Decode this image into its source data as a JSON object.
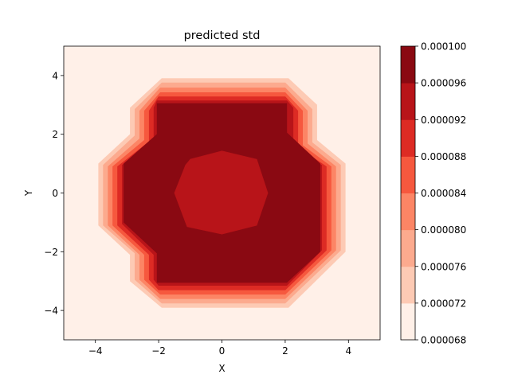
{
  "chart_data": {
    "type": "contourf",
    "title": "predicted std",
    "xlabel": "X",
    "ylabel": "Y",
    "xlim": [
      -5,
      5
    ],
    "ylim": [
      -5,
      5
    ],
    "x_ticks": [
      -4,
      -2,
      0,
      2,
      4
    ],
    "y_ticks": [
      -4,
      -2,
      0,
      2,
      4
    ],
    "x_tick_labels": [
      "−4",
      "−2",
      "0",
      "2",
      "4"
    ],
    "y_tick_labels": [
      "−4",
      "−2",
      "0",
      "2",
      "4"
    ],
    "colormap": "Reds",
    "colorbar": {
      "min": 6.8e-05,
      "max": 0.0001,
      "ticks": [
        6.8e-05,
        7.2e-05,
        7.6e-05,
        8e-05,
        8.4e-05,
        8.8e-05,
        9.2e-05,
        9.6e-05,
        0.0001
      ],
      "tick_labels": [
        "0.000068",
        "0.000072",
        "0.000076",
        "0.000080",
        "0.000084",
        "0.000088",
        "0.000092",
        "0.000096",
        "0.000100"
      ],
      "level_edges": [
        6.8e-05,
        7e-05,
        7.2e-05,
        7.4e-05,
        7.6e-05,
        7.8e-05,
        8e-05,
        8.2e-05,
        8.4e-05,
        8.6e-05,
        8.8e-05,
        9e-05,
        9.2e-05,
        9.4e-05,
        9.6e-05,
        9.8e-05,
        0.0001
      ]
    },
    "colors": [
      "#fff0e8",
      "#fdcab4",
      "#fcaa8e",
      "#fc8565",
      "#f6583e",
      "#dd2b24",
      "#b81419",
      "#8a0912"
    ],
    "regions": [
      {
        "level": 0,
        "polygon": [
          [
            -5,
            -5
          ],
          [
            5,
            -5
          ],
          [
            5,
            5
          ],
          [
            -5,
            5
          ]
        ]
      },
      {
        "level": 1,
        "polygon": [
          [
            -1.9,
            3.9
          ],
          [
            2.1,
            3.9
          ],
          [
            3.0,
            3.0
          ],
          [
            3.0,
            1.8
          ],
          [
            3.9,
            1.0
          ],
          [
            3.9,
            -2.0
          ],
          [
            2.1,
            -3.9
          ],
          [
            -1.9,
            -3.9
          ],
          [
            -2.9,
            -3.0
          ],
          [
            -2.9,
            -2.1
          ],
          [
            -3.9,
            -1.1
          ],
          [
            -3.9,
            1.0
          ],
          [
            -2.9,
            2.0
          ],
          [
            -2.9,
            2.9
          ]
        ]
      },
      {
        "level": 2,
        "polygon": [
          [
            -1.9,
            3.75
          ],
          [
            2.0,
            3.75
          ],
          [
            2.85,
            2.85
          ],
          [
            2.85,
            1.72
          ],
          [
            3.75,
            0.95
          ],
          [
            3.75,
            -1.95
          ],
          [
            2.0,
            -3.75
          ],
          [
            -1.9,
            -3.75
          ],
          [
            -2.75,
            -2.95
          ],
          [
            -2.75,
            -2.05
          ],
          [
            -3.75,
            -1.1
          ],
          [
            -3.75,
            0.95
          ],
          [
            -2.75,
            1.95
          ],
          [
            -2.75,
            2.85
          ]
        ]
      },
      {
        "level": 3,
        "polygon": [
          [
            -1.95,
            3.58
          ],
          [
            2.0,
            3.58
          ],
          [
            2.7,
            2.8
          ],
          [
            2.7,
            1.68
          ],
          [
            3.6,
            0.9
          ],
          [
            3.6,
            -1.95
          ],
          [
            2.0,
            -3.6
          ],
          [
            -1.95,
            -3.6
          ],
          [
            -2.6,
            -2.95
          ],
          [
            -2.6,
            -2.1
          ],
          [
            -3.6,
            -1.1
          ],
          [
            -3.6,
            0.9
          ],
          [
            -2.6,
            1.85
          ],
          [
            -2.6,
            2.8
          ]
        ]
      },
      {
        "level": 4,
        "polygon": [
          [
            -1.95,
            3.42
          ],
          [
            2.0,
            3.42
          ],
          [
            2.55,
            2.8
          ],
          [
            2.55,
            1.62
          ],
          [
            3.45,
            0.9
          ],
          [
            3.45,
            -1.95
          ],
          [
            2.0,
            -3.45
          ],
          [
            -1.95,
            -3.45
          ],
          [
            -2.45,
            -2.95
          ],
          [
            -2.45,
            -2.1
          ],
          [
            -3.45,
            -1.1
          ],
          [
            -3.45,
            0.9
          ],
          [
            -2.45,
            1.8
          ],
          [
            -2.45,
            2.8
          ]
        ]
      },
      {
        "level": 5,
        "polygon": [
          [
            -2.0,
            3.28
          ],
          [
            2.0,
            3.28
          ],
          [
            2.4,
            2.8
          ],
          [
            2.4,
            1.56
          ],
          [
            3.3,
            0.9
          ],
          [
            3.3,
            -1.95
          ],
          [
            2.0,
            -3.3
          ],
          [
            -2.0,
            -3.3
          ],
          [
            -2.3,
            -2.95
          ],
          [
            -2.3,
            -2.1
          ],
          [
            -3.3,
            -1.1
          ],
          [
            -3.3,
            0.9
          ],
          [
            -2.3,
            1.75
          ],
          [
            -2.3,
            2.8
          ]
        ]
      },
      {
        "level": 6,
        "polygon": [
          [
            -2.05,
            3.14
          ],
          [
            2.05,
            3.14
          ],
          [
            2.25,
            2.9
          ],
          [
            2.25,
            1.5
          ],
          [
            3.15,
            0.95
          ],
          [
            3.15,
            -1.95
          ],
          [
            2.05,
            -3.15
          ],
          [
            -2.0,
            -3.15
          ],
          [
            -2.15,
            -2.95
          ],
          [
            -2.15,
            -2.1
          ],
          [
            -3.15,
            -1.05
          ],
          [
            -3.15,
            0.95
          ],
          [
            -2.15,
            1.72
          ],
          [
            -2.15,
            2.9
          ]
        ]
      },
      {
        "level": 7,
        "polygon": [
          [
            -2.05,
            3.05
          ],
          [
            2.05,
            3.05
          ],
          [
            2.05,
            2.05
          ],
          [
            3.1,
            1.0
          ],
          [
            3.1,
            -2.0
          ],
          [
            2.05,
            -3.05
          ],
          [
            -2.05,
            -3.05
          ],
          [
            -2.05,
            -2.05
          ],
          [
            -3.1,
            -1.0
          ],
          [
            -3.1,
            1.0
          ],
          [
            -2.05,
            2.0
          ]
        ]
      },
      {
        "level": 6,
        "polygon": [
          [
            -1.0,
            1.15
          ],
          [
            0,
            1.43
          ],
          [
            1.1,
            1.15
          ],
          [
            1.45,
            0
          ],
          [
            1.1,
            -1.1
          ],
          [
            0,
            -1.4
          ],
          [
            -1.1,
            -1.15
          ],
          [
            -1.5,
            0
          ],
          [
            -1.15,
            0.95
          ]
        ]
      }
    ]
  }
}
